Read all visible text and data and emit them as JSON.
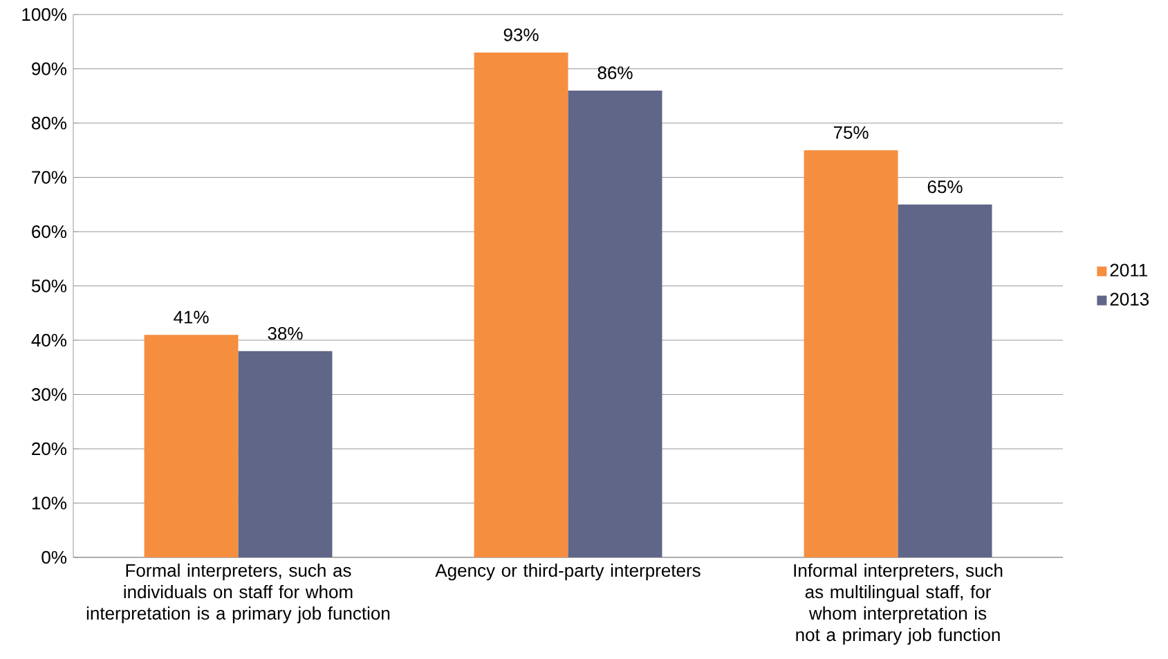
{
  "chart_data": {
    "type": "bar",
    "categories": [
      "Formal interpreters, such as individuals on staff for whom interpretation is a primary job function",
      "Agency or third-party interpreters",
      "Informal interpreters, such as multilingual staff, for whom interpretation is not a primary job function"
    ],
    "series": [
      {
        "name": "2011",
        "color": "#f68e40",
        "values": [
          41,
          93,
          75
        ],
        "value_labels": [
          "41%",
          "93%",
          "75%"
        ]
      },
      {
        "name": "2013",
        "color": "#5f6687",
        "values": [
          38,
          86,
          65
        ],
        "value_labels": [
          "38%",
          "86%",
          "65%"
        ]
      }
    ],
    "ylim": [
      0,
      100
    ],
    "yticks": [
      {
        "value": 0,
        "label": "0%"
      },
      {
        "value": 10,
        "label": "10%"
      },
      {
        "value": 20,
        "label": "20%"
      },
      {
        "value": 30,
        "label": "30%"
      },
      {
        "value": 40,
        "label": "40%"
      },
      {
        "value": 50,
        "label": "50%"
      },
      {
        "value": 60,
        "label": "60%"
      },
      {
        "value": 70,
        "label": "70%"
      },
      {
        "value": 80,
        "label": "80%"
      },
      {
        "value": 90,
        "label": "90%"
      },
      {
        "value": 100,
        "label": "100%"
      }
    ],
    "grid": "y",
    "legend": "right"
  }
}
